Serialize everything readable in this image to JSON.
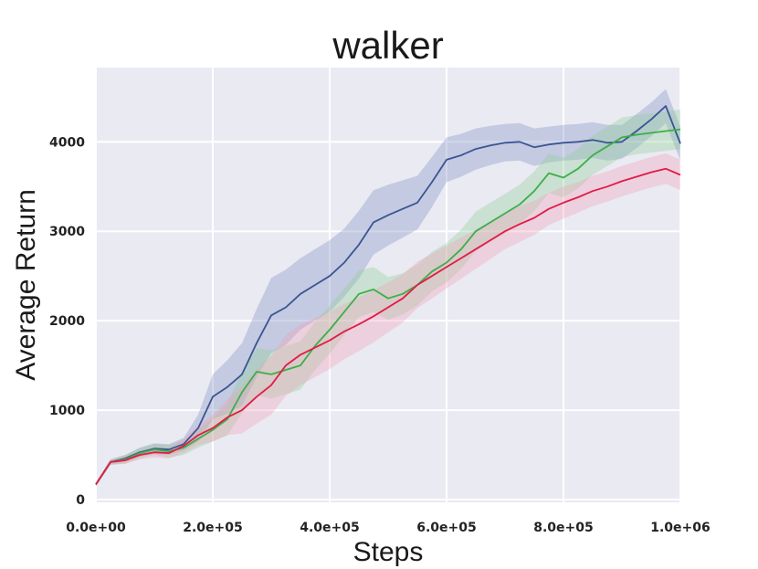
{
  "chart_data": {
    "type": "line",
    "title": "walker",
    "xlabel": "Steps",
    "ylabel": "Average Return",
    "xlim": [
      0,
      1000000
    ],
    "ylim": [
      -30,
      4830
    ],
    "grid": true,
    "background": "#EAEAF2",
    "x_ticks": [
      0,
      200000,
      400000,
      600000,
      800000,
      1000000
    ],
    "x_tick_labels": [
      "0.0e+00",
      "2.0e+05",
      "4.0e+05",
      "6.0e+05",
      "8.0e+05",
      "1.0e+06"
    ],
    "y_ticks": [
      0,
      1000,
      2000,
      3000,
      4000
    ],
    "y_tick_labels": [
      "0",
      "1000",
      "2000",
      "3000",
      "4000"
    ],
    "x": [
      0,
      25000,
      50000,
      75000,
      100000,
      125000,
      150000,
      175000,
      200000,
      225000,
      250000,
      275000,
      300000,
      325000,
      350000,
      375000,
      400000,
      425000,
      450000,
      475000,
      500000,
      525000,
      550000,
      575000,
      600000,
      625000,
      650000,
      675000,
      700000,
      725000,
      750000,
      775000,
      800000,
      825000,
      850000,
      875000,
      900000,
      925000,
      950000,
      975000,
      1000000
    ],
    "series": [
      {
        "color": "#3A5592",
        "band_color": "#7F90C4",
        "values": [
          170,
          420,
          460,
          530,
          570,
          560,
          620,
          800,
          1150,
          1260,
          1400,
          1750,
          2060,
          2150,
          2300,
          2400,
          2500,
          2650,
          2850,
          3100,
          3180,
          3250,
          3320,
          3550,
          3800,
          3850,
          3920,
          3960,
          3990,
          4000,
          3940,
          3970,
          3990,
          4000,
          4020,
          3990,
          4000,
          4120,
          4250,
          4400,
          3980
        ],
        "band_half_width": [
          20,
          30,
          40,
          50,
          60,
          60,
          70,
          150,
          250,
          300,
          350,
          380,
          420,
          420,
          400,
          400,
          400,
          380,
          380,
          360,
          340,
          320,
          300,
          280,
          250,
          240,
          230,
          220,
          210,
          210,
          210,
          200,
          200,
          200,
          200,
          200,
          190,
          190,
          190,
          190,
          190
        ]
      },
      {
        "color": "#3CAF48",
        "band_color": "#8FCE98",
        "values": [
          170,
          420,
          450,
          520,
          560,
          540,
          580,
          680,
          780,
          900,
          1200,
          1430,
          1400,
          1450,
          1500,
          1720,
          1900,
          2100,
          2300,
          2350,
          2250,
          2300,
          2400,
          2550,
          2650,
          2800,
          3000,
          3100,
          3200,
          3300,
          3450,
          3650,
          3600,
          3700,
          3850,
          3950,
          4050,
          4080,
          4100,
          4120,
          4140
        ],
        "band_half_width": [
          20,
          30,
          50,
          60,
          60,
          70,
          80,
          100,
          130,
          180,
          230,
          260,
          270,
          270,
          270,
          270,
          270,
          260,
          260,
          250,
          240,
          230,
          230,
          220,
          220,
          220,
          220,
          220,
          220,
          220,
          220,
          220,
          220,
          220,
          220,
          220,
          220,
          220,
          220,
          220,
          220
        ]
      },
      {
        "color": "#E31A47",
        "band_color": "#F2A0B8",
        "values": [
          170,
          420,
          440,
          500,
          530,
          520,
          600,
          720,
          800,
          920,
          1000,
          1150,
          1280,
          1500,
          1620,
          1700,
          1780,
          1880,
          1960,
          2050,
          2150,
          2250,
          2400,
          2500,
          2600,
          2700,
          2800,
          2900,
          3000,
          3080,
          3150,
          3250,
          3320,
          3380,
          3450,
          3500,
          3560,
          3610,
          3660,
          3700,
          3630
        ],
        "band_half_width": [
          20,
          30,
          40,
          50,
          60,
          60,
          80,
          110,
          150,
          200,
          260,
          300,
          330,
          340,
          340,
          330,
          320,
          310,
          300,
          290,
          280,
          270,
          260,
          250,
          240,
          230,
          220,
          210,
          200,
          200,
          190,
          180,
          180,
          170,
          170,
          170,
          170,
          170,
          170,
          170,
          170
        ]
      }
    ]
  }
}
